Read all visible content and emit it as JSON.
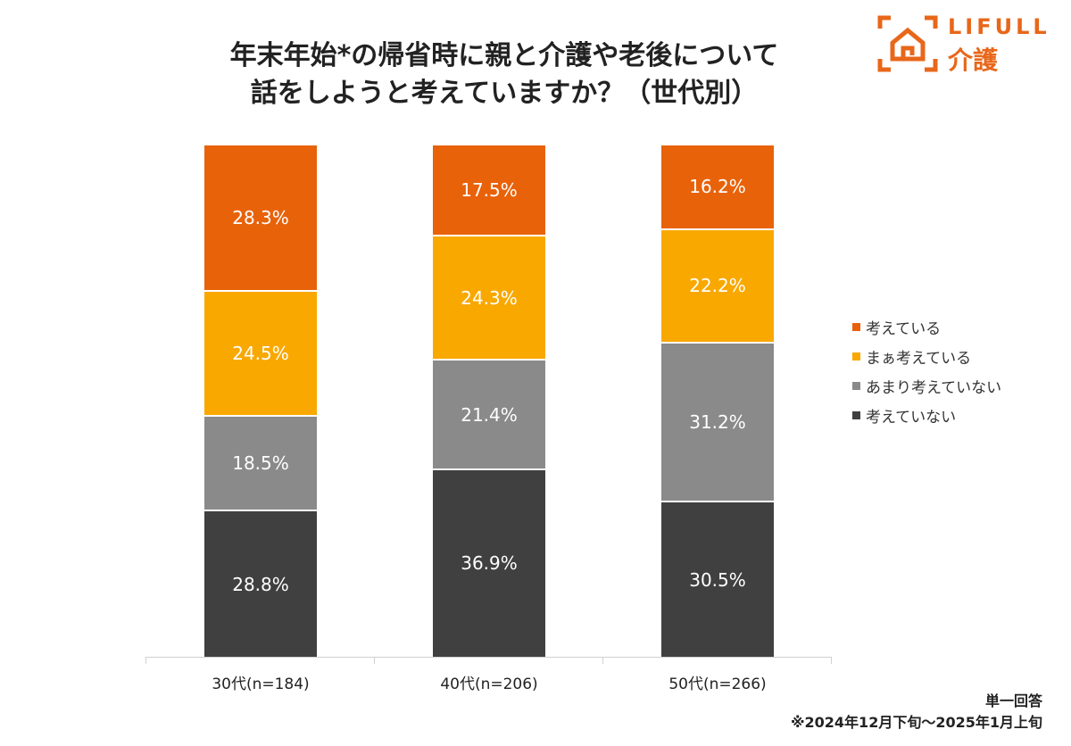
{
  "title_lines": [
    "年末年始*の帰省時に親と介護や老後について",
    "話をしようと考えていますか？（世代別）"
  ],
  "logo": {
    "text": "LIFULL",
    "sub": "介護"
  },
  "footer": {
    "line1": "単一回答",
    "line2": "※2024年12月下旬～2025年1月上旬"
  },
  "chart_data": {
    "type": "bar",
    "stacked": true,
    "unit": "%",
    "categories": [
      "30代(n=184)",
      "40代(n=206)",
      "50代(n=266)"
    ],
    "series": [
      {
        "name": "考えている",
        "color": "#e8620a",
        "values": [
          28.3,
          17.5,
          16.2
        ]
      },
      {
        "name": "まぁ考えている",
        "color": "#f9a800",
        "values": [
          24.5,
          24.3,
          22.2
        ]
      },
      {
        "name": "あまり考えていない",
        "color": "#8a8a8a",
        "values": [
          18.5,
          21.4,
          31.2
        ]
      },
      {
        "name": "考えていない",
        "color": "#404040",
        "values": [
          28.8,
          36.9,
          30.5
        ]
      }
    ],
    "legend": "right"
  }
}
